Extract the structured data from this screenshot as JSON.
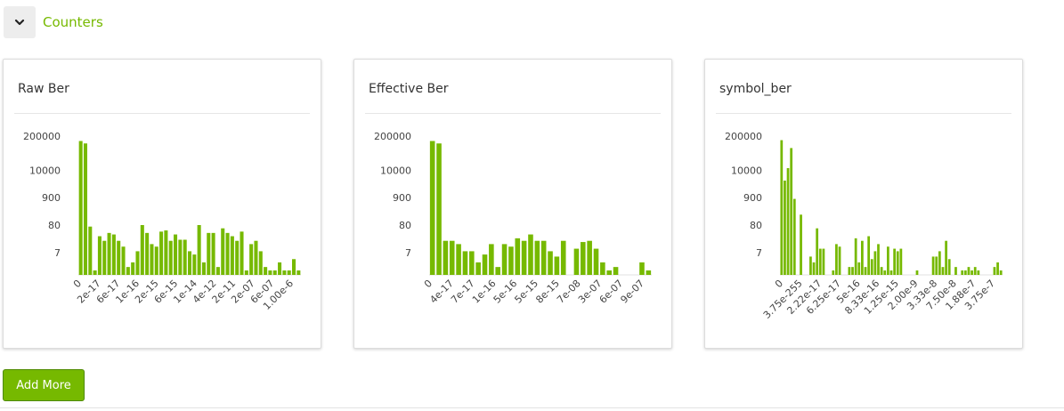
{
  "section": {
    "title": "Counters",
    "collapse_icon": "chevron-down-icon"
  },
  "accent_color": "#76b900",
  "add_button_label": "Add More",
  "cards": [
    {
      "title": "Raw Ber"
    },
    {
      "title": "Effective Ber"
    },
    {
      "title": "symbol_ber"
    }
  ],
  "chart_data": [
    {
      "type": "bar",
      "title": "Raw Ber",
      "y_scale": "log",
      "y_tick_labels": [
        "200000",
        "10000",
        "900",
        "80",
        "7"
      ],
      "x_tick_labels": [
        "0",
        "2e-17",
        "6e-17",
        "1e-16",
        "2e-15",
        "6e-15",
        "1e-14",
        "4e-12",
        "2e-11",
        "2e-07",
        "6e-07",
        "1.00e-6"
      ],
      "values": [
        130000,
        105000,
        70,
        1,
        30,
        20,
        40,
        35,
        20,
        12,
        2,
        3,
        8,
        80,
        40,
        15,
        12,
        45,
        50,
        20,
        35,
        22,
        22,
        8,
        6,
        80,
        3,
        40,
        40,
        2,
        60,
        40,
        30,
        20,
        45,
        1,
        15,
        20,
        8,
        2,
        1,
        1,
        3,
        1,
        1,
        4,
        1
      ]
    },
    {
      "type": "bar",
      "title": "Effective Ber",
      "y_scale": "log",
      "y_tick_labels": [
        "200000",
        "10000",
        "900",
        "80",
        "7"
      ],
      "x_tick_labels": [
        "0",
        "4e-17",
        "7e-17",
        "1e-16",
        "5e-16",
        "5e-15",
        "8e-15",
        "7e-08",
        "3e-07",
        "6e-07",
        "9e-07"
      ],
      "values": [
        130000,
        105000,
        20,
        20,
        15,
        8,
        8,
        3,
        6,
        15,
        2,
        15,
        12,
        25,
        20,
        35,
        20,
        20,
        8,
        5,
        20,
        0,
        10,
        18,
        20,
        10,
        3,
        1,
        2,
        0,
        0,
        0,
        3,
        1
      ]
    },
    {
      "type": "bar",
      "title": "symbol_ber",
      "y_scale": "log",
      "y_tick_labels": [
        "200000",
        "10000",
        "900",
        "80",
        "7"
      ],
      "x_tick_labels": [
        "0",
        "3.75e-255",
        "2.22e-17",
        "6.25e-17",
        "5e-16",
        "8.33e-16",
        "1.25e-15",
        "2.00e-9",
        "3.33e-8",
        "7.50e-8",
        "1.88e-7",
        "3.75e-7"
      ],
      "values": [
        140000,
        4000,
        12000,
        70000,
        800,
        0,
        200,
        0,
        0,
        5,
        3,
        60,
        10,
        10,
        0,
        0,
        1,
        15,
        12,
        0,
        0,
        2,
        2,
        25,
        3,
        20,
        2,
        30,
        4,
        8,
        15,
        2,
        1,
        12,
        1,
        10,
        8,
        10,
        0,
        0,
        0,
        0,
        1,
        0,
        0,
        0,
        0,
        5,
        5,
        8,
        2,
        20,
        4,
        0,
        2,
        0,
        1,
        1,
        2,
        1,
        2,
        1,
        0,
        0,
        0,
        0,
        2,
        3,
        1
      ]
    }
  ]
}
